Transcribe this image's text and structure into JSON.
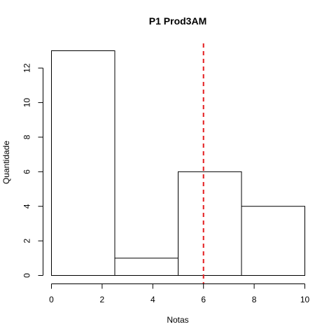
{
  "chart_data": {
    "type": "histogram",
    "title": "P1 Prod3AM",
    "xlabel": "Notas",
    "ylabel": "Quantidade",
    "bins": [
      {
        "x0": 0,
        "x1": 2.5,
        "count": 13
      },
      {
        "x0": 2.5,
        "x1": 5,
        "count": 1
      },
      {
        "x0": 5,
        "x1": 7.5,
        "count": 6
      },
      {
        "x0": 7.5,
        "x1": 10,
        "count": 4
      }
    ],
    "xlim": [
      0,
      10
    ],
    "ylim": [
      0,
      13
    ],
    "xticks": [
      0,
      2,
      4,
      6,
      8,
      10
    ],
    "yticks": [
      0,
      2,
      4,
      6,
      8,
      10,
      12
    ],
    "reference_line": {
      "x": 6,
      "color": "#e31a1c",
      "style": "dashed"
    },
    "bar_fill": "#ffffff",
    "bar_edge": "#000000",
    "grid": false,
    "legend": "none"
  }
}
